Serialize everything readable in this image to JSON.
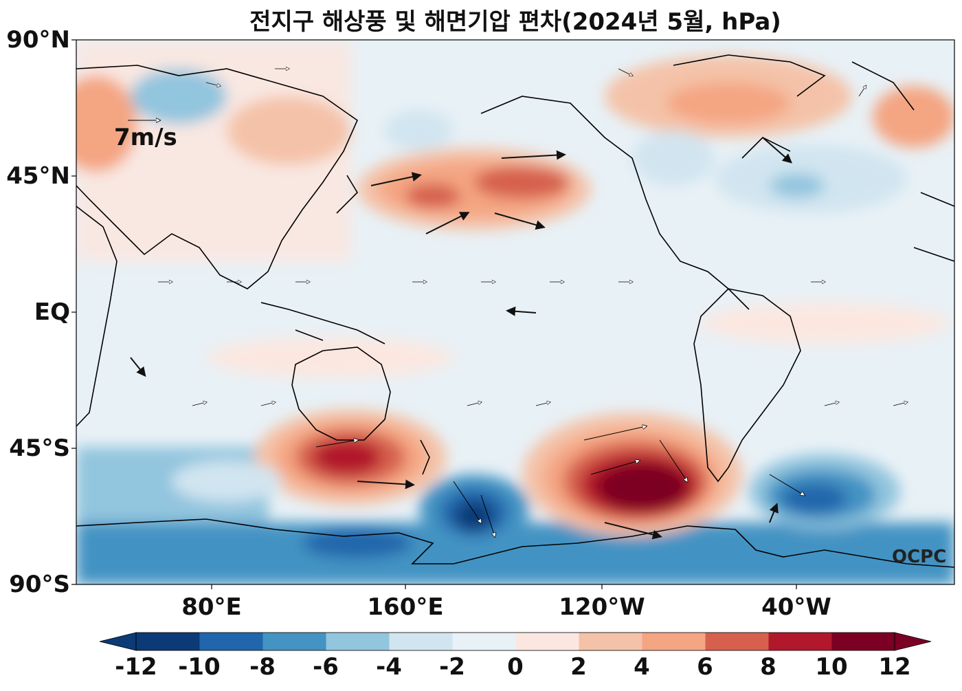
{
  "title": "전지구 해상풍 및 해면기압 편차(2024년 5월, hPa)",
  "lat_labels": [
    "90°N",
    "45°N",
    "EQ",
    "45°S",
    "90°S"
  ],
  "lon_labels": [
    "80°E",
    "160°E",
    "120°W",
    "40°W"
  ],
  "reference_vector": "7m/s",
  "watermark": "OCPC",
  "colorbar": {
    "ticks": [
      "-12",
      "-10",
      "-8",
      "-6",
      "-4",
      "-2",
      "0",
      "2",
      "4",
      "6",
      "8",
      "10",
      "12"
    ],
    "colors": [
      "#0b3a76",
      "#2166ac",
      "#4393c3",
      "#92c5de",
      "#d1e5f0",
      "#e8f1f6",
      "#fbe7e0",
      "#f4c2a8",
      "#f4a582",
      "#d6604d",
      "#b2182b",
      "#7b0023"
    ]
  },
  "map": {
    "projection": "PlateCarree, central longitude ~180 (20°E – 340°E)",
    "field": "sea level pressure anomaly (hPa) with surface wind anomaly vectors",
    "features": [
      {
        "name": "north-pacific-high",
        "sign": "positive",
        "peak_hpa": 6
      },
      {
        "name": "australia-south-high",
        "sign": "positive",
        "peak_hpa": 10
      },
      {
        "name": "southeast-pacific-high",
        "sign": "positive",
        "peak_hpa": 12
      },
      {
        "name": "ross-sea-low",
        "sign": "negative",
        "peak_hpa": -12
      },
      {
        "name": "south-atlantic-low",
        "sign": "negative",
        "peak_hpa": -10
      },
      {
        "name": "north-atlantic-low",
        "sign": "negative",
        "peak_hpa": -4
      },
      {
        "name": "greenland-high",
        "sign": "positive",
        "peak_hpa": 4
      },
      {
        "name": "north-siberia-low",
        "sign": "negative",
        "peak_hpa": -4
      }
    ]
  }
}
